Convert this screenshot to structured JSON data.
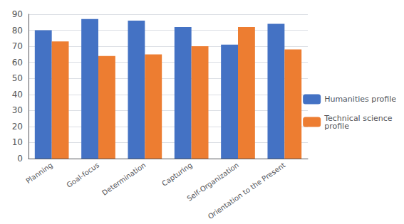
{
  "chart_data": {
    "type": "bar",
    "categories": [
      "Planning",
      "Goal-focus",
      "Determination",
      "Capturing",
      "Self-Organization",
      "Orientation to the Present"
    ],
    "series": [
      {
        "name": "Humanities profile",
        "color": "#4472C4",
        "values": [
          80,
          87,
          86,
          82,
          71,
          84
        ]
      },
      {
        "name": "Technical science\nprofile",
        "color": "#ED7D31",
        "values": [
          73,
          64,
          65,
          70,
          82,
          68
        ]
      }
    ],
    "ylim": [
      0,
      90
    ],
    "yticks": [
      0,
      10,
      20,
      30,
      40,
      50,
      60,
      70,
      80,
      90
    ],
    "grid": true,
    "legend": "right"
  }
}
